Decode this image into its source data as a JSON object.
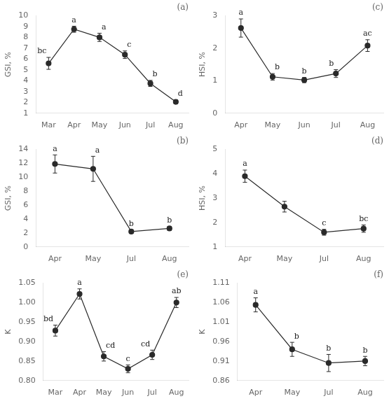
{
  "chart_data": [
    {
      "type": "line",
      "title": "(a)",
      "ylabel": "GSI, %",
      "categories": [
        "Mar",
        "Apr",
        "May",
        "Jun",
        "Jul",
        "Aug"
      ],
      "values": [
        5.6,
        8.75,
        8.0,
        6.4,
        3.75,
        2.05
      ],
      "yerr": [
        0.55,
        0.28,
        0.38,
        0.35,
        0.28,
        0.18
      ],
      "annotations": [
        "bc",
        "a",
        "a",
        "c",
        "b",
        "d"
      ],
      "color": "#2a2a2a",
      "marker": "circle",
      "line_style": "solid",
      "ylim": [
        1,
        10
      ],
      "yticks": [
        1,
        2,
        3,
        4,
        5,
        6,
        7,
        8,
        9,
        10
      ],
      "grid": false
    },
    {
      "type": "line",
      "title": "(c)",
      "ylabel": "HSI, %",
      "categories": [
        "Apr",
        "May",
        "Jun",
        "Jul",
        "Aug"
      ],
      "values": [
        2.62,
        1.12,
        1.02,
        1.22,
        2.08
      ],
      "yerr": [
        0.28,
        0.1,
        0.08,
        0.12,
        0.18
      ],
      "annotations": [
        "a",
        "b",
        "b",
        "b",
        "ac"
      ],
      "color": "#2a2a2a",
      "marker": "circle",
      "line_style": "solid",
      "ylim": [
        0,
        3
      ],
      "yticks": [
        0,
        1,
        2,
        3
      ],
      "grid": false
    },
    {
      "type": "line",
      "title": "(b)",
      "ylabel": "GSI, %",
      "categories": [
        "Apr",
        "May",
        "Jul",
        "Aug"
      ],
      "values": [
        11.9,
        11.2,
        2.2,
        2.65
      ],
      "yerr": [
        1.3,
        1.8,
        0.22,
        0.28
      ],
      "annotations": [
        "a",
        "a",
        "b",
        "b"
      ],
      "color": "#2a2a2a",
      "marker": "circle",
      "line_style": "solid",
      "ylim": [
        0,
        14
      ],
      "yticks": [
        0,
        2,
        4,
        6,
        8,
        10,
        12,
        14
      ],
      "grid": false
    },
    {
      "type": "line",
      "title": "(d)",
      "ylabel": "HSI, %",
      "categories": [
        "Apr",
        "May",
        "Jul",
        "Aug"
      ],
      "values": [
        3.9,
        2.65,
        1.6,
        1.75
      ],
      "yerr": [
        0.25,
        0.22,
        0.12,
        0.15
      ],
      "annotations": [
        "a",
        null,
        "c",
        "bc"
      ],
      "color": "#2a2a2a",
      "marker": "circle",
      "line_style": "solid",
      "ylim": [
        1,
        5
      ],
      "yticks": [
        1,
        2,
        3,
        4,
        5
      ],
      "grid": false
    },
    {
      "type": "line",
      "title": "(e)",
      "ylabel": "K",
      "categories": [
        "Mar",
        "Apr",
        "May",
        "Jun",
        "Jul",
        "Aug"
      ],
      "values": [
        0.928,
        1.022,
        0.862,
        0.83,
        0.866,
        1.0
      ],
      "yerr": [
        0.014,
        0.013,
        0.012,
        0.01,
        0.012,
        0.013
      ],
      "annotations": [
        "bd",
        "a",
        "cd",
        "c",
        "cd",
        "ab"
      ],
      "color": "#2a2a2a",
      "marker": "circle",
      "line_style": "solid",
      "ylim": [
        0.8,
        1.05
      ],
      "yticks": [
        {
          "value": 0.8,
          "label": "0.80"
        },
        0.85,
        {
          "value": 0.9,
          "label": "0.90"
        },
        0.95,
        {
          "value": 1.0,
          "label": "1.00"
        },
        1.05
      ],
      "grid": false
    },
    {
      "type": "line",
      "title": "(f)",
      "ylabel": "K",
      "categories": [
        "Apr",
        "May",
        "Jul",
        "Aug"
      ],
      "values": [
        1.054,
        0.94,
        0.905,
        0.91
      ],
      "yerr": [
        0.018,
        0.018,
        0.022,
        0.012
      ],
      "annotations": [
        "a",
        "b",
        "b",
        "b"
      ],
      "color": "#2a2a2a",
      "marker": "circle",
      "line_style": "solid",
      "ylim": [
        0.86,
        1.11
      ],
      "yticks": [
        0.86,
        0.91,
        0.96,
        1.01,
        1.06,
        1.11
      ],
      "grid": false
    }
  ]
}
